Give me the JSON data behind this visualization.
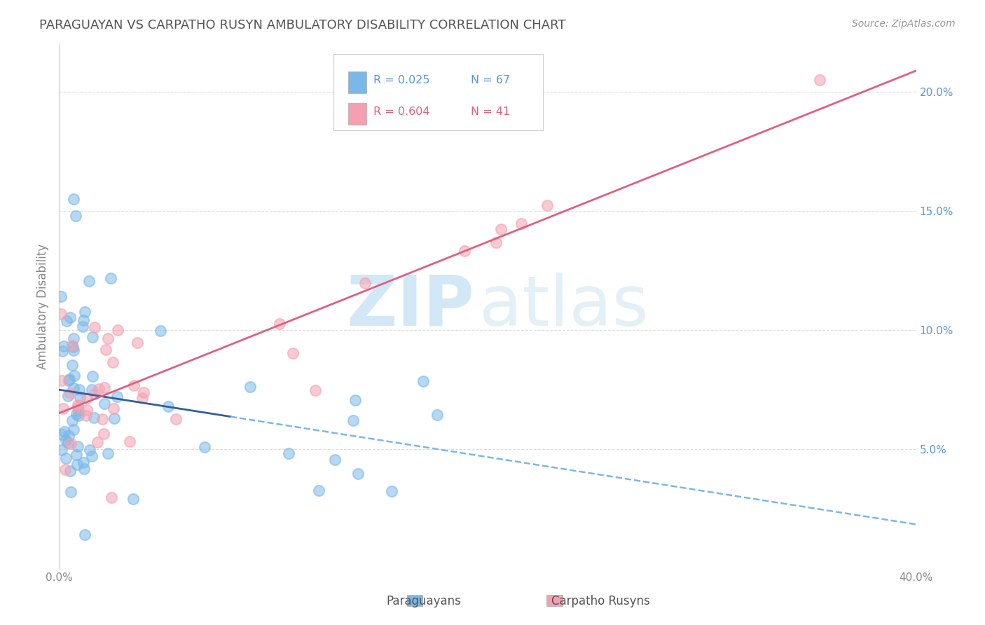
{
  "title": "PARAGUAYAN VS CARPATHO RUSYN AMBULATORY DISABILITY CORRELATION CHART",
  "source": "Source: ZipAtlas.com",
  "ylabel": "Ambulatory Disability",
  "watermark_zip": "ZIP",
  "watermark_atlas": "atlas",
  "legend_blue_r": "R = 0.025",
  "legend_blue_n": "N = 67",
  "legend_pink_r": "R = 0.604",
  "legend_pink_n": "N = 41",
  "xlim": [
    0.0,
    0.4
  ],
  "ylim": [
    0.0,
    0.22
  ],
  "x_ticks": [
    0.0,
    0.1,
    0.2,
    0.3,
    0.4
  ],
  "x_tick_labels": [
    "0.0%",
    "",
    "",
    "",
    "40.0%"
  ],
  "y_ticks_right": [
    0.05,
    0.1,
    0.15,
    0.2
  ],
  "y_tick_labels_right": [
    "5.0%",
    "10.0%",
    "15.0%",
    "20.0%"
  ],
  "blue_scatter_color": "#7ab8e8",
  "pink_scatter_color": "#f4a0b0",
  "blue_line_solid_color": "#3060a0",
  "blue_line_dash_color": "#7ab8e8",
  "pink_line_color": "#e06080",
  "title_color": "#555555",
  "right_tick_color": "#5599dd",
  "grid_color": "#dddddd",
  "background_color": "#ffffff",
  "legend_border_color": "#cccccc",
  "bottom_label_color": "#555555"
}
